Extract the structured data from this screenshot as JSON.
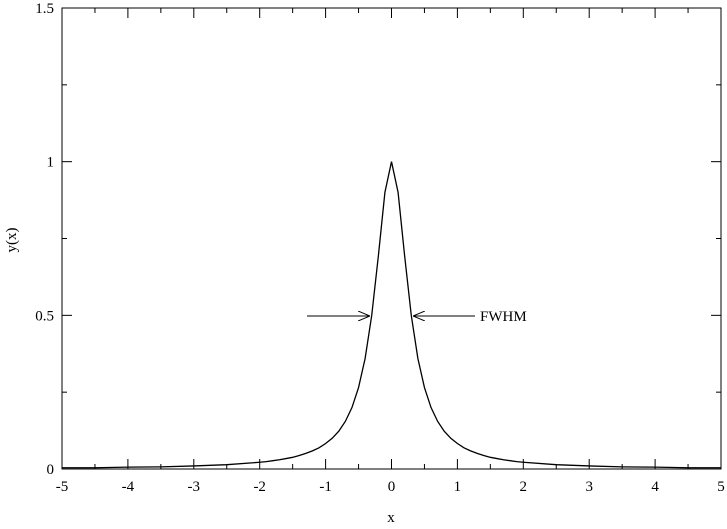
{
  "chart_data": {
    "type": "line",
    "xlabel": "x",
    "ylabel": "y(x)",
    "x": [
      -5,
      -4.5,
      -4,
      -3.5,
      -3,
      -2.5,
      -2,
      -1.9,
      -1.8,
      -1.7,
      -1.6,
      -1.5,
      -1.4,
      -1.3,
      -1.2,
      -1.1,
      -1,
      -0.9,
      -0.8,
      -0.7,
      -0.6,
      -0.5,
      -0.4,
      -0.3,
      -0.2,
      -0.1,
      0,
      0.1,
      0.2,
      0.3,
      0.4,
      0.5,
      0.6,
      0.7,
      0.8,
      0.9,
      1,
      1.1,
      1.2,
      1.3,
      1.4,
      1.5,
      1.6,
      1.7,
      1.8,
      1.9,
      2,
      2.5,
      3,
      3.5,
      4,
      4.5,
      5
    ],
    "values": [
      0.004,
      0.004,
      0.006,
      0.007,
      0.01,
      0.014,
      0.022,
      0.024,
      0.027,
      0.03,
      0.034,
      0.038,
      0.044,
      0.051,
      0.059,
      0.069,
      0.083,
      0.1,
      0.123,
      0.155,
      0.2,
      0.265,
      0.36,
      0.5,
      0.692,
      0.9,
      1,
      0.9,
      0.692,
      0.5,
      0.36,
      0.265,
      0.2,
      0.155,
      0.123,
      0.1,
      0.083,
      0.069,
      0.059,
      0.051,
      0.044,
      0.038,
      0.034,
      0.03,
      0.027,
      0.024,
      0.022,
      0.014,
      0.01,
      0.007,
      0.006,
      0.004,
      0.004
    ],
    "color": "#000000",
    "xlim": [
      -5,
      5
    ],
    "xticks": [
      -5,
      -4,
      -3,
      -2,
      -1,
      0,
      1,
      2,
      3,
      4,
      5
    ],
    "xminorticks": [
      -4.5,
      -3.5,
      -2.5,
      -1.5,
      -0.5,
      0.5,
      1.5,
      2.5,
      3.5,
      4.5
    ],
    "ylim": [
      0,
      1.5
    ],
    "yticks": [
      0,
      0.5,
      1,
      1.5
    ],
    "yminorticks": [
      0.25,
      0.75,
      1.25
    ],
    "annotation": "FWHM"
  }
}
